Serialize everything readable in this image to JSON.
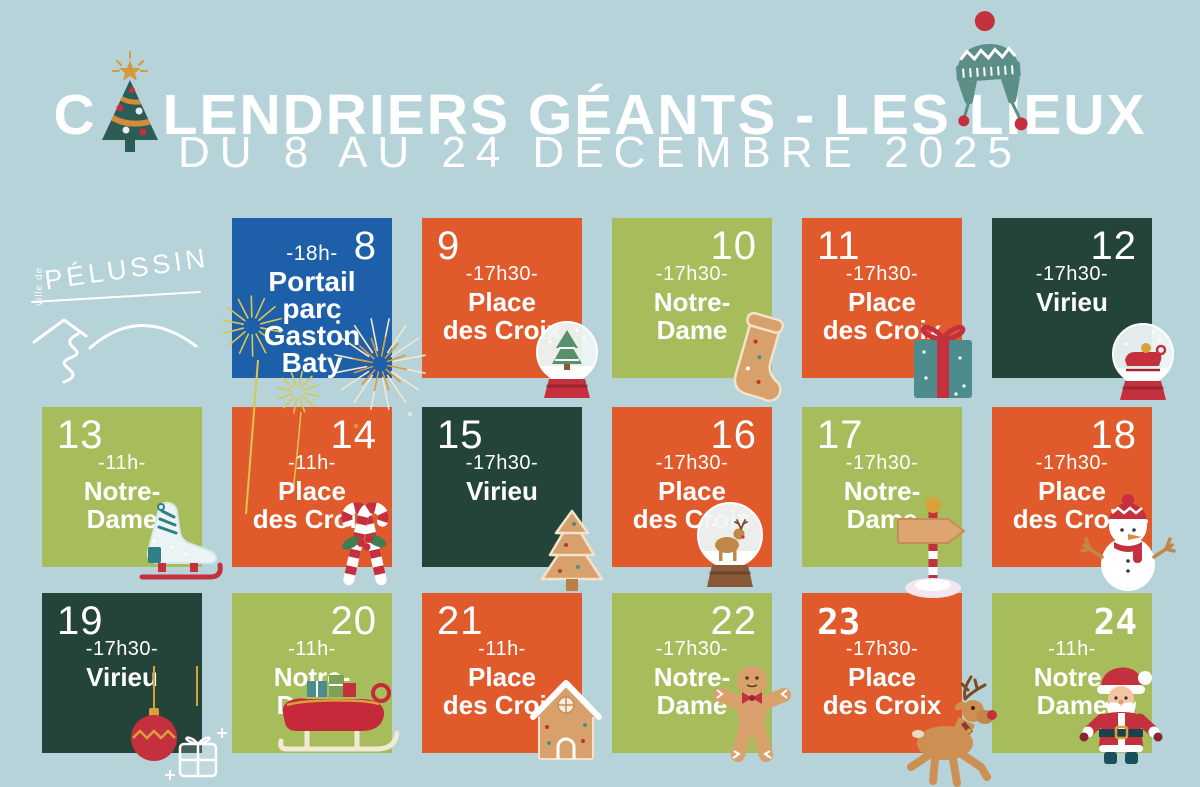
{
  "palette": {
    "background": "#b5d3d8",
    "blue": "#1d5fa8",
    "orange": "#e05a2b",
    "green": "#a7bd5b",
    "dark_green": "#24443a",
    "white": "#ffffff",
    "red": "#c5303e",
    "teal": "#4d8c8d",
    "hat_teal": "#5a8e86",
    "gold": "#d9a13b",
    "tan": "#d8a06b",
    "yellow_firework": "#d8c752"
  },
  "header": {
    "title_prefix": "C",
    "title_rest": "LENDRIERS GÉANTS - LES LIEUX",
    "subtitle": "DU 8 AU 24 DÉCEMBRE 2025"
  },
  "logo": {
    "ville_label": "ville de",
    "name": "PÉLUSSIN"
  },
  "calendar": {
    "tiles": [
      {
        "day": "8",
        "time": "-18h-",
        "place_lines": [
          "Portail",
          "parc",
          "Gaston",
          "Baty"
        ],
        "color": "blue",
        "number_corner": "right",
        "number_style": "default",
        "icon": "fireworks",
        "row": 0,
        "col": 1
      },
      {
        "day": "9",
        "time": "-17h30-",
        "place_lines": [
          "Place",
          "des Croix"
        ],
        "color": "orange",
        "number_corner": "left",
        "number_style": "default",
        "icon": "snow-globe-tree",
        "row": 0,
        "col": 2
      },
      {
        "day": "10",
        "time": "-17h30-",
        "place_lines": [
          "Notre-",
          "Dame"
        ],
        "color": "green",
        "number_corner": "right",
        "number_style": "default",
        "icon": "gingerbread-stocking",
        "row": 0,
        "col": 3
      },
      {
        "day": "11",
        "time": "-17h30-",
        "place_lines": [
          "Place",
          "des Croix"
        ],
        "color": "orange",
        "number_corner": "left",
        "number_style": "default",
        "icon": "gift",
        "row": 0,
        "col": 4
      },
      {
        "day": "12",
        "time": "-17h30-",
        "place_lines": [
          "Virieu"
        ],
        "color": "dark_green",
        "number_corner": "right",
        "number_style": "default",
        "icon": "snow-globe-sleigh",
        "row": 0,
        "col": 5
      },
      {
        "day": "13",
        "time": "-11h-",
        "place_lines": [
          "Notre-",
          "Dame"
        ],
        "color": "green",
        "number_corner": "left",
        "number_style": "default",
        "icon": "ice-skate",
        "row": 1,
        "col": 0
      },
      {
        "day": "14",
        "time": "-11h-",
        "place_lines": [
          "Place",
          "des Croix"
        ],
        "color": "orange",
        "number_corner": "right",
        "number_style": "default",
        "icon": "candy-canes",
        "row": 1,
        "col": 1
      },
      {
        "day": "15",
        "time": "-17h30-",
        "place_lines": [
          "Virieu"
        ],
        "color": "dark_green",
        "number_corner": "left",
        "number_style": "default",
        "icon": "gingerbread-tree",
        "row": 1,
        "col": 2
      },
      {
        "day": "16",
        "time": "-17h30-",
        "place_lines": [
          "Place",
          "des Croix"
        ],
        "color": "orange",
        "number_corner": "right",
        "number_style": "default",
        "icon": "snow-globe-reindeer",
        "row": 1,
        "col": 3
      },
      {
        "day": "17",
        "time": "-17h30-",
        "place_lines": [
          "Notre-",
          "Dame"
        ],
        "color": "green",
        "number_corner": "left",
        "number_style": "default",
        "icon": "signpost",
        "row": 1,
        "col": 4
      },
      {
        "day": "18",
        "time": "-17h30-",
        "place_lines": [
          "Place",
          "des Croix"
        ],
        "color": "orange",
        "number_corner": "right",
        "number_style": "default",
        "icon": "snowman",
        "row": 1,
        "col": 5
      },
      {
        "day": "19",
        "time": "-17h30-",
        "place_lines": [
          "Virieu"
        ],
        "color": "dark_green",
        "number_corner": "left",
        "number_style": "default",
        "icon": "ornament",
        "row": 2,
        "col": 0
      },
      {
        "day": "20",
        "time": "-11h-",
        "place_lines": [
          "Notre-",
          "Dame"
        ],
        "color": "green",
        "number_corner": "right",
        "number_style": "default",
        "icon": "sleigh",
        "row": 2,
        "col": 1
      },
      {
        "day": "21",
        "time": "-11h-",
        "place_lines": [
          "Place",
          "des Croix"
        ],
        "color": "orange",
        "number_corner": "left",
        "number_style": "default",
        "icon": "gingerbread-house",
        "row": 2,
        "col": 2
      },
      {
        "day": "22",
        "time": "-17h30-",
        "place_lines": [
          "Notre-",
          "Dame"
        ],
        "color": "green",
        "number_corner": "right",
        "number_style": "default",
        "icon": "gingerbread-man",
        "row": 2,
        "col": 3
      },
      {
        "day": "23",
        "time": "-17h30-",
        "place_lines": [
          "Place",
          "des Croix"
        ],
        "color": "orange",
        "number_corner": "left",
        "number_style": "hand",
        "icon": "reindeer",
        "row": 2,
        "col": 4
      },
      {
        "day": "24",
        "time": "-11h-",
        "place_lines": [
          "Notre-",
          "Dame"
        ],
        "color": "green",
        "number_corner": "right",
        "number_style": "hand",
        "icon": "santa",
        "row": 2,
        "col": 5
      }
    ]
  }
}
